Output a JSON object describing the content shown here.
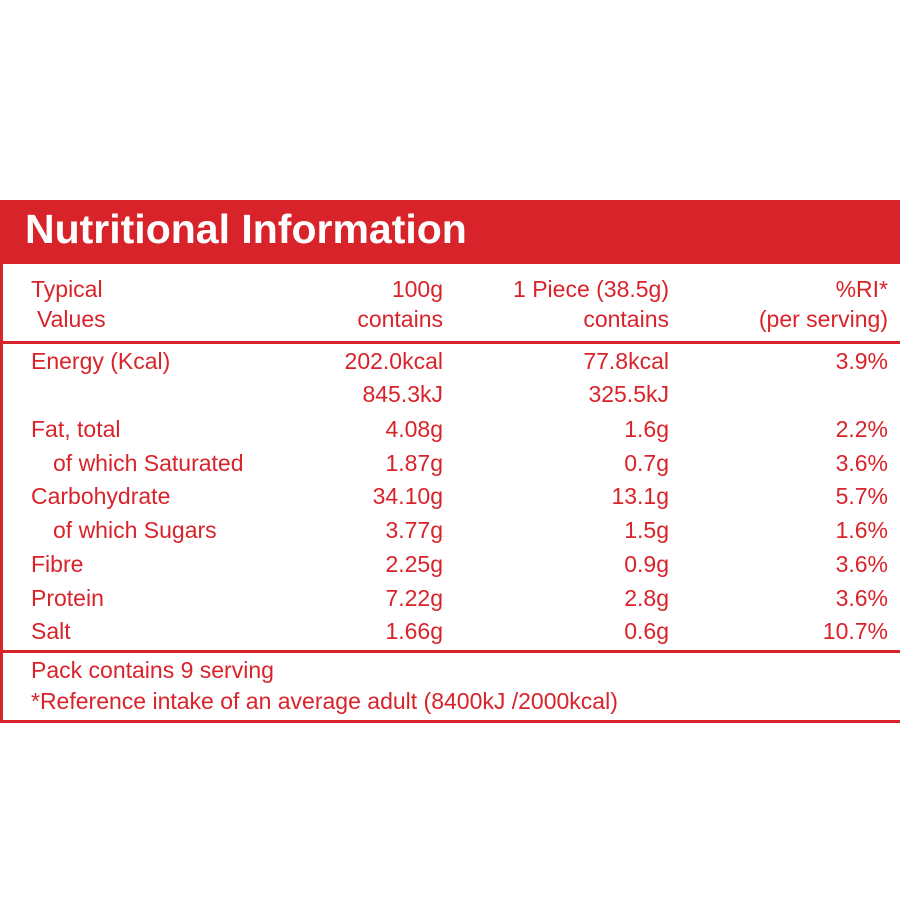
{
  "title": "Nutritional Information",
  "colors": {
    "brand_red": "#d8232a",
    "background": "#ffffff"
  },
  "header": {
    "col1_line1": "Typical",
    "col1_line2": "Values",
    "col2_line1": "100g",
    "col2_line2": "contains",
    "col3_line1": "1 Piece (38.5g)",
    "col3_line2": "contains",
    "col4_line1": "%RI*",
    "col4_line2": "(per serving)"
  },
  "rows": [
    {
      "label": "Energy (Kcal)",
      "per100": "202.0kcal",
      "perpiece": "77.8kcal",
      "ri": "3.9%"
    },
    {
      "label": "",
      "per100": "845.3kJ",
      "perpiece": "325.5kJ",
      "ri": ""
    },
    {
      "label": "Fat, total",
      "per100": "4.08g",
      "perpiece": "1.6g",
      "ri": "2.2%"
    },
    {
      "label": "of which Saturated",
      "per100": "1.87g",
      "perpiece": "0.7g",
      "ri": "3.6%"
    },
    {
      "label": "Carbohydrate",
      "per100": "34.10g",
      "perpiece": "13.1g",
      "ri": "5.7%"
    },
    {
      "label": "of which Sugars",
      "per100": "3.77g",
      "perpiece": "1.5g",
      "ri": "1.6%"
    },
    {
      "label": "Fibre",
      "per100": "2.25g",
      "perpiece": "0.9g",
      "ri": "3.6%"
    },
    {
      "label": "Protein",
      "per100": "7.22g",
      "perpiece": "2.8g",
      "ri": "3.6%"
    },
    {
      "label": "Salt",
      "per100": "1.66g",
      "perpiece": "0.6g",
      "ri": "10.7%"
    }
  ],
  "footer": {
    "servings": "Pack contains 9 serving",
    "reference": "*Reference intake of an average adult (8400kJ /2000kcal)"
  }
}
